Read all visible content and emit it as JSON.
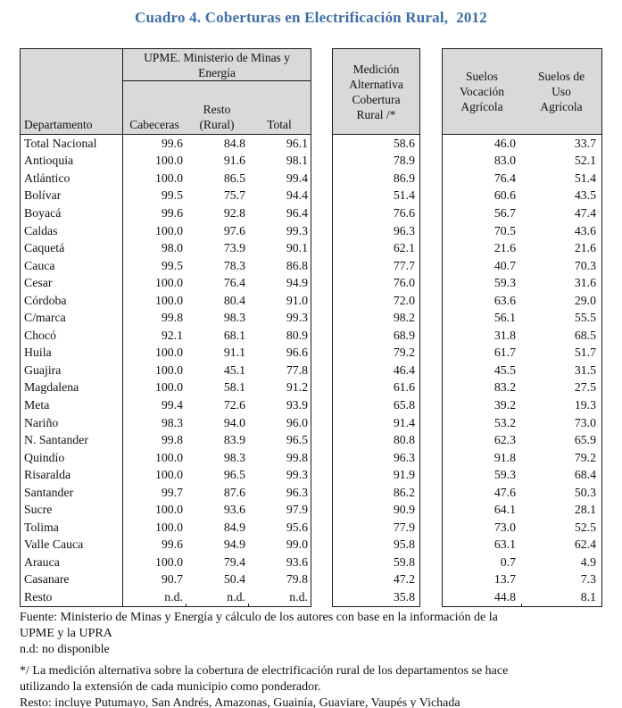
{
  "title": "Cuadro 4. Coberturas en Electrificación Rural,  2012",
  "colors": {
    "title_blue": "#3e6ea8",
    "header_gray": "#d9d9d9",
    "border": "#1c1c1c"
  },
  "table_upme": {
    "departamento_header": "Departamento",
    "group_header": "UPME. Ministerio de Minas y\nEnergía",
    "sub_headers": [
      "Cabeceras",
      "Resto\n(Rural)",
      "Total"
    ]
  },
  "table_medicion": {
    "header": "Medición\nAlternativa\nCobertura\nRural /*"
  },
  "table_suelos": {
    "headers": [
      "Suelos\nVocación\nAgrícola",
      "Suelos de\nUso\nAgrícola"
    ]
  },
  "rows": [
    {
      "departamento": "Total Nacional",
      "cabeceras": "99.6",
      "resto_rural": "84.8",
      "total": "96.1",
      "medicion_alternativa": "58.6",
      "suelos_vocacion": "46.0",
      "suelos_uso": "33.7"
    },
    {
      "departamento": "Antioquia",
      "cabeceras": "100.0",
      "resto_rural": "91.6",
      "total": "98.1",
      "medicion_alternativa": "78.9",
      "suelos_vocacion": "83.0",
      "suelos_uso": "52.1"
    },
    {
      "departamento": "Atlántico",
      "cabeceras": "100.0",
      "resto_rural": "86.5",
      "total": "99.4",
      "medicion_alternativa": "86.9",
      "suelos_vocacion": "76.4",
      "suelos_uso": "51.4"
    },
    {
      "departamento": "Bolívar",
      "cabeceras": "99.5",
      "resto_rural": "75.7",
      "total": "94.4",
      "medicion_alternativa": "51.4",
      "suelos_vocacion": "60.6",
      "suelos_uso": "43.5"
    },
    {
      "departamento": "Boyacá",
      "cabeceras": "99.6",
      "resto_rural": "92.8",
      "total": "96.4",
      "medicion_alternativa": "76.6",
      "suelos_vocacion": "56.7",
      "suelos_uso": "47.4"
    },
    {
      "departamento": "Caldas",
      "cabeceras": "100.0",
      "resto_rural": "97.6",
      "total": "99.3",
      "medicion_alternativa": "96.3",
      "suelos_vocacion": "70.5",
      "suelos_uso": "43.6"
    },
    {
      "departamento": "Caquetá",
      "cabeceras": "98.0",
      "resto_rural": "73.9",
      "total": "90.1",
      "medicion_alternativa": "62.1",
      "suelos_vocacion": "21.6",
      "suelos_uso": "21.6"
    },
    {
      "departamento": "Cauca",
      "cabeceras": "99.5",
      "resto_rural": "78.3",
      "total": "86.8",
      "medicion_alternativa": "77.7",
      "suelos_vocacion": "40.7",
      "suelos_uso": "70.3"
    },
    {
      "departamento": "Cesar",
      "cabeceras": "100.0",
      "resto_rural": "76.4",
      "total": "94.9",
      "medicion_alternativa": "76.0",
      "suelos_vocacion": "59.3",
      "suelos_uso": "31.6"
    },
    {
      "departamento": "Córdoba",
      "cabeceras": "100.0",
      "resto_rural": "80.4",
      "total": "91.0",
      "medicion_alternativa": "72.0",
      "suelos_vocacion": "63.6",
      "suelos_uso": "29.0"
    },
    {
      "departamento": "C/marca",
      "cabeceras": "99.8",
      "resto_rural": "98.3",
      "total": "99.3",
      "medicion_alternativa": "98.2",
      "suelos_vocacion": "56.1",
      "suelos_uso": "55.5"
    },
    {
      "departamento": "Chocó",
      "cabeceras": "92.1",
      "resto_rural": "68.1",
      "total": "80.9",
      "medicion_alternativa": "68.9",
      "suelos_vocacion": "31.8",
      "suelos_uso": "68.5"
    },
    {
      "departamento": "Huila",
      "cabeceras": "100.0",
      "resto_rural": "91.1",
      "total": "96.6",
      "medicion_alternativa": "79.2",
      "suelos_vocacion": "61.7",
      "suelos_uso": "51.7"
    },
    {
      "departamento": "Guajira",
      "cabeceras": "100.0",
      "resto_rural": "45.1",
      "total": "77.8",
      "medicion_alternativa": "46.4",
      "suelos_vocacion": "45.5",
      "suelos_uso": "31.5"
    },
    {
      "departamento": "Magdalena",
      "cabeceras": "100.0",
      "resto_rural": "58.1",
      "total": "91.2",
      "medicion_alternativa": "61.6",
      "suelos_vocacion": "83.2",
      "suelos_uso": "27.5"
    },
    {
      "departamento": "Meta",
      "cabeceras": "99.4",
      "resto_rural": "72.6",
      "total": "93.9",
      "medicion_alternativa": "65.8",
      "suelos_vocacion": "39.2",
      "suelos_uso": "19.3"
    },
    {
      "departamento": "Nariño",
      "cabeceras": "98.3",
      "resto_rural": "94.0",
      "total": "96.0",
      "medicion_alternativa": "91.4",
      "suelos_vocacion": "53.2",
      "suelos_uso": "73.0"
    },
    {
      "departamento": "N. Santander",
      "cabeceras": "99.8",
      "resto_rural": "83.9",
      "total": "96.5",
      "medicion_alternativa": "80.8",
      "suelos_vocacion": "62.3",
      "suelos_uso": "65.9"
    },
    {
      "departamento": "Quindío",
      "cabeceras": "100.0",
      "resto_rural": "98.3",
      "total": "99.8",
      "medicion_alternativa": "96.3",
      "suelos_vocacion": "91.8",
      "suelos_uso": "79.2"
    },
    {
      "departamento": "Risaralda",
      "cabeceras": "100.0",
      "resto_rural": "96.5",
      "total": "99.3",
      "medicion_alternativa": "91.9",
      "suelos_vocacion": "59.3",
      "suelos_uso": "68.4"
    },
    {
      "departamento": "Santander",
      "cabeceras": "99.7",
      "resto_rural": "87.6",
      "total": "96.3",
      "medicion_alternativa": "86.2",
      "suelos_vocacion": "47.6",
      "suelos_uso": "50.3"
    },
    {
      "departamento": "Sucre",
      "cabeceras": "100.0",
      "resto_rural": "93.6",
      "total": "97.9",
      "medicion_alternativa": "90.9",
      "suelos_vocacion": "64.1",
      "suelos_uso": "28.1"
    },
    {
      "departamento": "Tolima",
      "cabeceras": "100.0",
      "resto_rural": "84.9",
      "total": "95.6",
      "medicion_alternativa": "77.9",
      "suelos_vocacion": "73.0",
      "suelos_uso": "52.5"
    },
    {
      "departamento": "Valle Cauca",
      "cabeceras": "99.6",
      "resto_rural": "94.9",
      "total": "99.0",
      "medicion_alternativa": "95.8",
      "suelos_vocacion": "63.1",
      "suelos_uso": "62.4"
    },
    {
      "departamento": "Arauca",
      "cabeceras": "100.0",
      "resto_rural": "79.4",
      "total": "93.6",
      "medicion_alternativa": "59.8",
      "suelos_vocacion": "0.7",
      "suelos_uso": "4.9"
    },
    {
      "departamento": "Casanare",
      "cabeceras": "90.7",
      "resto_rural": "50.4",
      "total": "79.8",
      "medicion_alternativa": "47.2",
      "suelos_vocacion": "13.7",
      "suelos_uso": "7.3"
    },
    {
      "departamento": "Resto",
      "cabeceras": "n.d.",
      "resto_rural": "n.d.",
      "total": "n.d.",
      "medicion_alternativa": "35.8",
      "suelos_vocacion": "44.8",
      "suelos_uso": "8.1"
    }
  ],
  "footnotes": {
    "fuente": "Fuente: Ministerio de Minas y Energía y cálculo de los autores con base en la información de la\nUPME y la UPRA",
    "nd": "n.d: no disponible",
    "asterisco": "*/ La medición alternativa sobre la cobertura de electrificación rural de los departamentos se hace\nutilizando la extensión de cada municipio como ponderador.",
    "resto": "Resto: incluye Putumayo, San Andrés, Amazonas, Guainía, Guaviare, Vaupés y Vichada"
  }
}
